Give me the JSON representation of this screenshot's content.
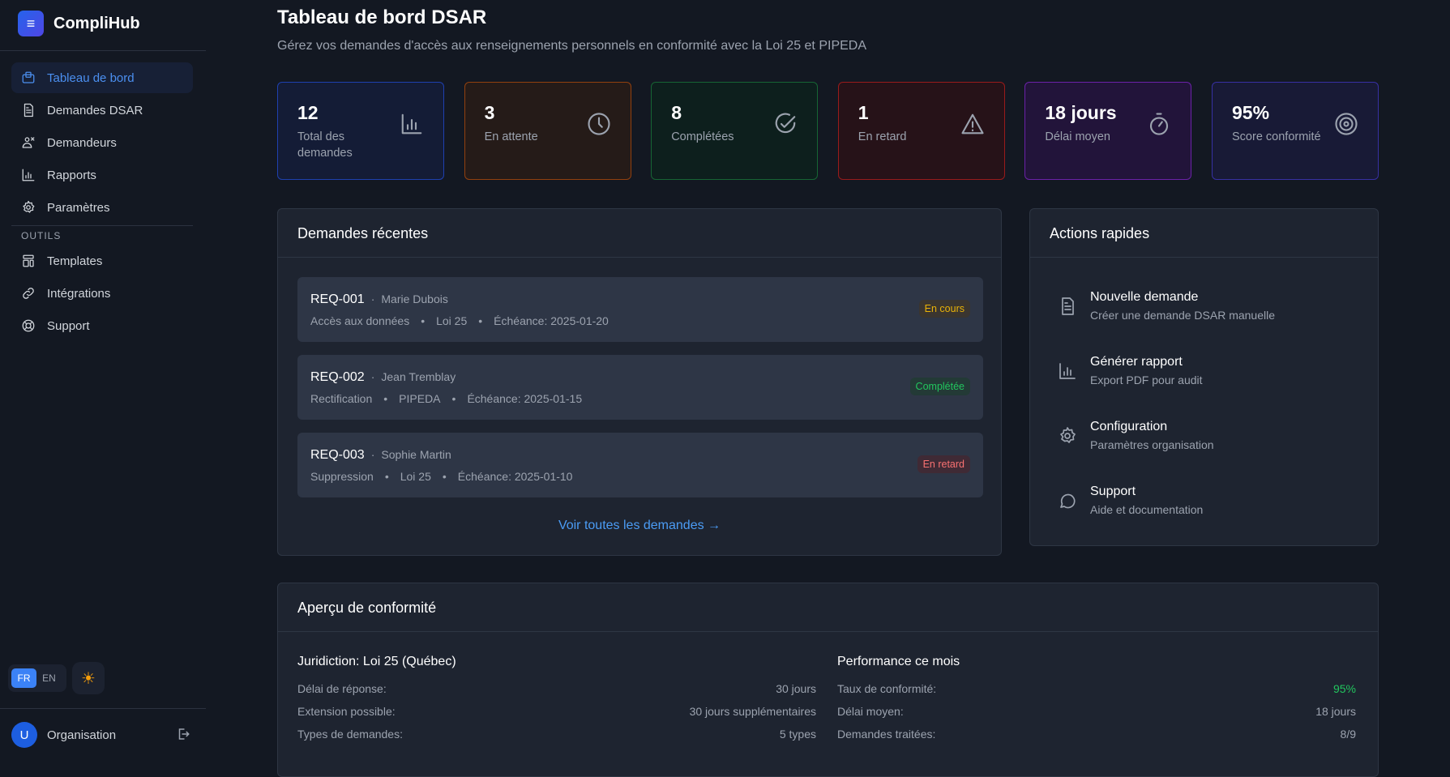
{
  "app": {
    "name": "CompliHub"
  },
  "sidebar": {
    "items": [
      {
        "label": "Tableau de bord",
        "icon": "dashboard-icon",
        "active": true
      },
      {
        "label": "Demandes DSAR",
        "icon": "document-icon"
      },
      {
        "label": "Demandeurs",
        "icon": "users-icon"
      },
      {
        "label": "Rapports",
        "icon": "bar-chart-icon"
      },
      {
        "label": "Paramètres",
        "icon": "gear-icon"
      }
    ],
    "section": "OUTILS",
    "tools": [
      {
        "label": "Templates",
        "icon": "template-icon"
      },
      {
        "label": "Intégrations",
        "icon": "link-icon"
      },
      {
        "label": "Support",
        "icon": "lifebuoy-icon"
      }
    ],
    "lang": {
      "fr": "FR",
      "en": "EN",
      "selected": "FR"
    },
    "user": {
      "initial": "U",
      "name": "Organisation"
    }
  },
  "header": {
    "title": "Tableau de bord DSAR",
    "subtitle": "Gérez vos demandes d'accès aux renseignements personnels en conformité avec la Loi 25 et PIPEDA"
  },
  "stats": [
    {
      "value": "12",
      "label": "Total des demandes",
      "icon": "bar-chart-icon",
      "border": "#1e40af",
      "bg": "#141c36"
    },
    {
      "value": "3",
      "label": "En attente",
      "icon": "clock-icon",
      "border": "#92400e",
      "bg": "#251b18"
    },
    {
      "value": "8",
      "label": "Complétées",
      "icon": "check-circle-icon",
      "border": "#166534",
      "bg": "#0d1f1d"
    },
    {
      "value": "1",
      "label": "En retard",
      "icon": "warning-icon",
      "border": "#991b1b",
      "bg": "#261218"
    },
    {
      "value": "18 jours",
      "label": "Délai moyen",
      "icon": "stopwatch-icon",
      "border": "#6b21a8",
      "bg": "#22143a"
    },
    {
      "value": "95%",
      "label": "Score conformité",
      "icon": "target-icon",
      "border": "#3730a3",
      "bg": "#181a36"
    }
  ],
  "recent": {
    "title": "Demandes récentes",
    "link": "Voir toutes les demandes →",
    "items": [
      {
        "id": "REQ-001",
        "name": "Marie Dubois",
        "type": "Accès aux données",
        "law": "Loi 25",
        "due": "Échéance: 2025-01-20",
        "status": "En cours",
        "color": "#eab308",
        "badge_bg": "#3a3530"
      },
      {
        "id": "REQ-002",
        "name": "Jean Tremblay",
        "type": "Rectification",
        "law": "PIPEDA",
        "due": "Échéance: 2025-01-15",
        "status": "Complétée",
        "color": "#22c55e",
        "badge_bg": "#233a36"
      },
      {
        "id": "REQ-003",
        "name": "Sophie Martin",
        "type": "Suppression",
        "law": "Loi 25",
        "due": "Échéance: 2025-01-10",
        "status": "En retard",
        "color": "#f87171",
        "badge_bg": "#3f2a35"
      }
    ]
  },
  "quick": {
    "title": "Actions rapides",
    "items": [
      {
        "title": "Nouvelle demande",
        "desc": "Créer une demande DSAR manuelle",
        "icon": "document-icon"
      },
      {
        "title": "Générer rapport",
        "desc": "Export PDF pour audit",
        "icon": "bar-chart-icon"
      },
      {
        "title": "Configuration",
        "desc": "Paramètres organisation",
        "icon": "gear-icon"
      },
      {
        "title": "Support",
        "desc": "Aide et documentation",
        "icon": "chat-icon"
      }
    ]
  },
  "compliance": {
    "title": "Aperçu de conformité",
    "left": {
      "title": "Juridiction: Loi 25 (Québec)",
      "rows": [
        {
          "k": "Délai de réponse:",
          "v": "30 jours"
        },
        {
          "k": "Extension possible:",
          "v": "30 jours supplémentaires"
        },
        {
          "k": "Types de demandes:",
          "v": "5 types"
        }
      ]
    },
    "right": {
      "title": "Performance ce mois",
      "rows": [
        {
          "k": "Taux de conformité:",
          "v": "95%",
          "color": "#22c55e"
        },
        {
          "k": "Délai moyen:",
          "v": "18 jours"
        },
        {
          "k": "Demandes traitées:",
          "v": "8/9"
        }
      ]
    }
  }
}
